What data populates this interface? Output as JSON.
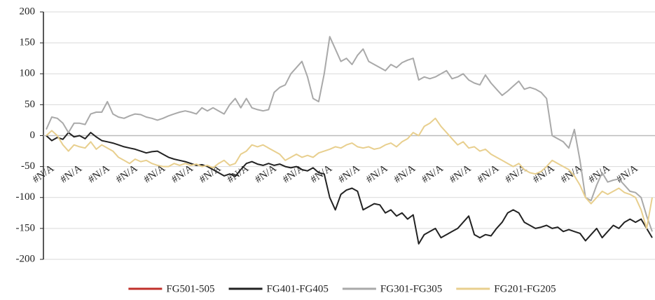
{
  "chart_data": {
    "type": "line",
    "categories": [
      "#N/A",
      null,
      null,
      null,
      null,
      "#N/A",
      null,
      null,
      null,
      null,
      "#N/A",
      null,
      null,
      null,
      null,
      "#N/A",
      null,
      null,
      null,
      null,
      "#N/A",
      null,
      null,
      null,
      null,
      "#N/A",
      null,
      null,
      null,
      null,
      "#N/A",
      null,
      null,
      null,
      null,
      "#N/A",
      null,
      null,
      null,
      null,
      "#N/A",
      null,
      null,
      null,
      null,
      "#N/A",
      null,
      null,
      null,
      null,
      "#N/A",
      null,
      null,
      null,
      null,
      "#N/A",
      null,
      null,
      null,
      null,
      "#N/A",
      null,
      null,
      null,
      null,
      "#N/A",
      null,
      null,
      null,
      null,
      "#N/A",
      null,
      null,
      null,
      null,
      "#N/A",
      null,
      null,
      null,
      null,
      "#N/A",
      null,
      null,
      null,
      null,
      "#N/A",
      null,
      null,
      null,
      null,
      "#N/A",
      null,
      null,
      null,
      null,
      "#N/A",
      null,
      null,
      null,
      null,
      "#N/A",
      null,
      null,
      null,
      null,
      "#N/A",
      null,
      null,
      null,
      null
    ],
    "series": [
      {
        "name": "FG501-505",
        "color": "#c0302a",
        "values": [
          null,
          null,
          null,
          null,
          null,
          null,
          null,
          null,
          null,
          null,
          null,
          null,
          null,
          null,
          null,
          null,
          null,
          null,
          null,
          null,
          null,
          null,
          null,
          null,
          null,
          null,
          null,
          null,
          null,
          null,
          null,
          null,
          null,
          null,
          null,
          null,
          null,
          null,
          null,
          null,
          null,
          null,
          null,
          null,
          null,
          null,
          null,
          null,
          null,
          null,
          null,
          null,
          null,
          null,
          null,
          null,
          null,
          null,
          null,
          null,
          null,
          null,
          null,
          null,
          null,
          null,
          null,
          null,
          null,
          null,
          null,
          null,
          null,
          null,
          null,
          null,
          null,
          null,
          null,
          null,
          null,
          null,
          null,
          null,
          null,
          null,
          null,
          null,
          null,
          null,
          null,
          null,
          null,
          null,
          null,
          null,
          null,
          null,
          null,
          null,
          null,
          null,
          null,
          null,
          null,
          null,
          null,
          null,
          null,
          null
        ]
      },
      {
        "name": "FG401-FG405",
        "color": "#222222",
        "values": [
          0,
          -8,
          -3,
          -6,
          5,
          -2,
          0,
          -5,
          5,
          -2,
          -8,
          -10,
          -12,
          -15,
          -18,
          -20,
          -22,
          -25,
          -28,
          -26,
          -25,
          -30,
          -35,
          -38,
          -40,
          -42,
          -45,
          -48,
          -47,
          -50,
          -55,
          -60,
          -65,
          -62,
          -66,
          -55,
          -45,
          -42,
          -46,
          -48,
          -45,
          -48,
          -46,
          -50,
          -52,
          -50,
          -55,
          -57,
          -52,
          -60,
          -62,
          -100,
          -120,
          -95,
          -88,
          -85,
          -90,
          -120,
          -115,
          -110,
          -112,
          -125,
          -120,
          -130,
          -125,
          -135,
          -128,
          -175,
          -160,
          -155,
          -150,
          -165,
          -160,
          -155,
          -150,
          -140,
          -130,
          -160,
          -165,
          -160,
          -162,
          -150,
          -140,
          -125,
          -120,
          -125,
          -140,
          -145,
          -150,
          -148,
          -145,
          -150,
          -148,
          -155,
          -152,
          -155,
          -158,
          -170,
          -160,
          -150,
          -165,
          -155,
          -145,
          -150,
          -140,
          -135,
          -140,
          -135,
          -150,
          -165
        ]
      },
      {
        "name": "FG301-FG305",
        "color": "#a9a9a9",
        "values": [
          10,
          30,
          28,
          20,
          5,
          20,
          20,
          18,
          35,
          38,
          38,
          55,
          35,
          30,
          28,
          32,
          35,
          34,
          30,
          28,
          25,
          28,
          32,
          35,
          38,
          40,
          38,
          35,
          45,
          40,
          45,
          40,
          35,
          50,
          60,
          45,
          60,
          45,
          42,
          40,
          42,
          70,
          78,
          82,
          100,
          110,
          120,
          95,
          60,
          55,
          100,
          160,
          140,
          120,
          125,
          115,
          130,
          140,
          120,
          115,
          110,
          105,
          115,
          110,
          118,
          122,
          125,
          90,
          95,
          92,
          95,
          100,
          105,
          92,
          95,
          100,
          90,
          85,
          82,
          98,
          85,
          75,
          65,
          72,
          80,
          88,
          75,
          78,
          75,
          70,
          60,
          0,
          -5,
          -10,
          -20,
          10,
          -40,
          -100,
          -105,
          -80,
          -60,
          -75,
          -72,
          -70,
          -80,
          -90,
          -92,
          -100,
          -130,
          -155
        ]
      },
      {
        "name": "FG201-FG205",
        "color": "#e8cf8e",
        "values": [
          0,
          8,
          0,
          -15,
          -25,
          -15,
          -18,
          -20,
          -10,
          -22,
          -15,
          -20,
          -25,
          -35,
          -40,
          -45,
          -38,
          -42,
          -40,
          -45,
          -48,
          -50,
          -50,
          -45,
          -48,
          -45,
          -48,
          -46,
          -50,
          -48,
          -52,
          -45,
          -40,
          -48,
          -45,
          -30,
          -25,
          -15,
          -18,
          -15,
          -20,
          -25,
          -30,
          -40,
          -35,
          -30,
          -35,
          -32,
          -35,
          -28,
          -25,
          -22,
          -18,
          -20,
          -15,
          -12,
          -18,
          -20,
          -18,
          -22,
          -20,
          -15,
          -12,
          -18,
          -10,
          -5,
          5,
          0,
          15,
          20,
          28,
          15,
          5,
          -5,
          -15,
          -10,
          -20,
          -18,
          -25,
          -22,
          -30,
          -35,
          -40,
          -45,
          -50,
          -45,
          -55,
          -60,
          -62,
          -58,
          -50,
          -40,
          -45,
          -50,
          -55,
          -65,
          -80,
          -100,
          -110,
          -100,
          -90,
          -95,
          -90,
          -85,
          -92,
          -95,
          -100,
          -120,
          -150,
          -100
        ]
      }
    ],
    "ylim": [
      -200,
      200
    ],
    "yticks": [
      -200,
      -150,
      -100,
      -50,
      0,
      50,
      100,
      150,
      200
    ],
    "grid": true
  }
}
